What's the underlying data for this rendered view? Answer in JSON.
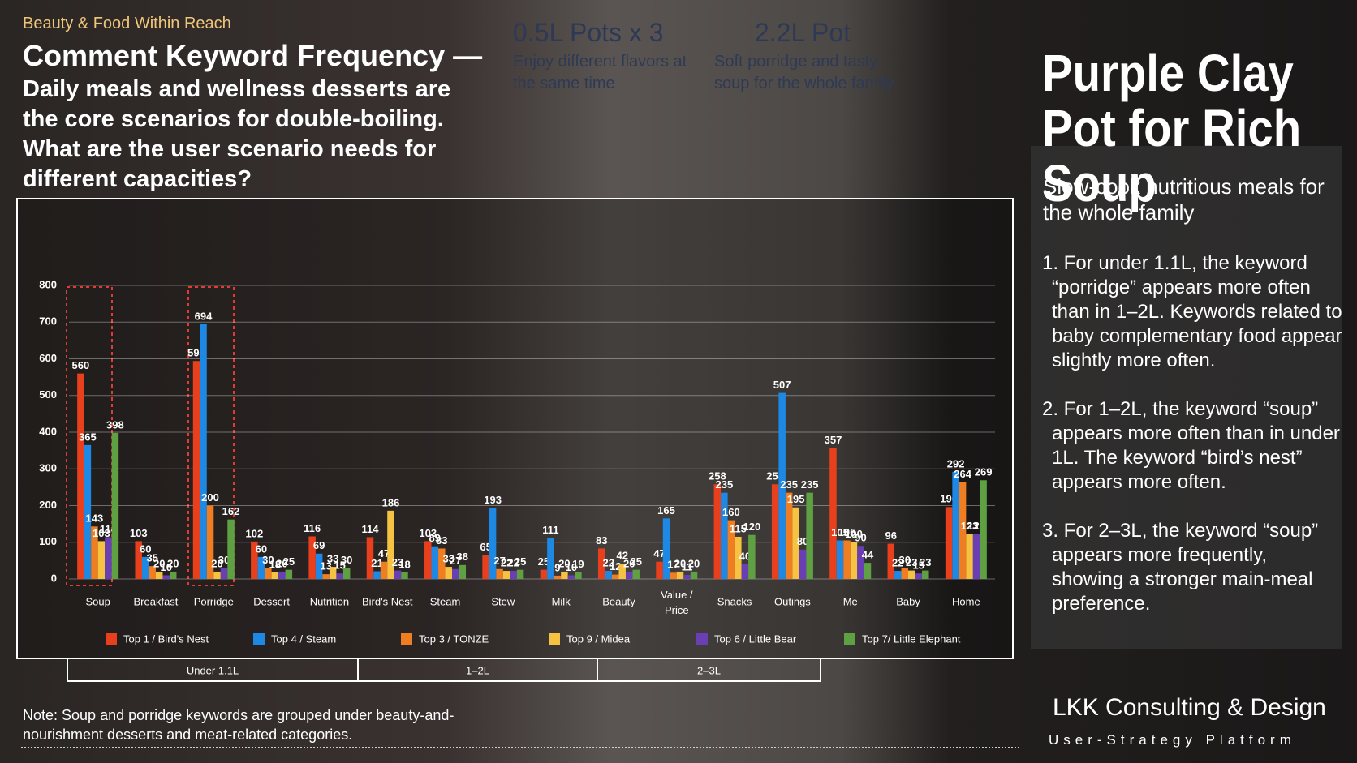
{
  "header": {
    "tag": "Beauty & Food Within Reach",
    "title": "Comment Keyword Frequency —",
    "subtitle": "Daily meals and wellness desserts are the core scenarios for double-boiling. What are the user scenario needs for different capacities?"
  },
  "top_notes": [
    {
      "title": "0.5L Pots x 3",
      "text": "Enjoy different flavors at the same time"
    },
    {
      "title": "2.2L Pot",
      "text": "Soft porridge and tasty soup for the whole family"
    }
  ],
  "chart_data": {
    "type": "bar",
    "ylim": [
      0,
      800
    ],
    "yticks": [
      0,
      100,
      200,
      300,
      400,
      500,
      600,
      700,
      800
    ],
    "grid": true,
    "categories": [
      "Soup",
      "Breakfast",
      "Porridge",
      "Dessert",
      "Nutrition",
      "Bird's Nest",
      "Steam",
      "Stew",
      "Milk",
      "Beauty",
      "Value / Price",
      "Snacks",
      "Outings",
      "Me",
      "Baby",
      "Home"
    ],
    "series": [
      {
        "name": "Top 1 / Bird's Nest",
        "color": "#e8401c",
        "values": [
          560,
          103,
          594,
          102,
          116,
          114,
          103,
          65,
          25,
          83,
          47,
          258,
          258,
          357,
          96,
          196
        ]
      },
      {
        "name": "Top 4 / Steam",
        "color": "#1e88e5",
        "values": [
          365,
          60,
          694,
          60,
          69,
          21,
          89,
          193,
          111,
          22,
          165,
          235,
          507,
          105,
          22,
          292
        ]
      },
      {
        "name": "Top 3 / TONZE",
        "color": "#ef7d22",
        "values": [
          143,
          35,
          200,
          30,
          13,
          47,
          83,
          27,
          9,
          12,
          17,
          160,
          235,
          105,
          30,
          264
        ]
      },
      {
        "name": "Top 9 / Midea",
        "color": "#f5c242",
        "values": [
          103,
          20,
          20,
          18,
          33,
          186,
          33,
          22,
          20,
          42,
          20,
          115,
          195,
          100,
          23,
          123
        ]
      },
      {
        "name": "Top 6 / Little Bear",
        "color": "#6a3fb5",
        "values": [
          114,
          10,
          30,
          20,
          15,
          23,
          27,
          22,
          10,
          20,
          11,
          40,
          80,
          90,
          15,
          123
        ]
      },
      {
        "name": "Top 7/ Little Elephant",
        "color": "#5fa043",
        "values": [
          398,
          20,
          162,
          25,
          30,
          18,
          38,
          25,
          19,
          25,
          20,
          120,
          235,
          44,
          23,
          269
        ]
      }
    ]
  },
  "capacity_groups": [
    "Under 1.1L",
    "1–2L",
    "2–3L"
  ],
  "note": "Note:  Soup and porridge keywords are grouped under beauty-and-nourishment desserts and meat-related categories.",
  "right": {
    "title": "Purple Clay Pot for Rich Soup",
    "subtitle": "Slow-cook nutritious meals for the whole family",
    "points": [
      "1. For under 1.1L, the keyword “porridge” appears more often than in 1–2L. Keywords related to baby complementary food appear slightly more often.",
      "2. For 1–2L, the keyword “soup” appears more often than in under 1L. The keyword “bird’s nest” appears more often.",
      "3. For 2–3L, the keyword “soup” appears more frequently, showing a stronger main-meal preference."
    ],
    "brand": "LKK Consulting & Design",
    "tagline": "User-Strategy Platform"
  }
}
